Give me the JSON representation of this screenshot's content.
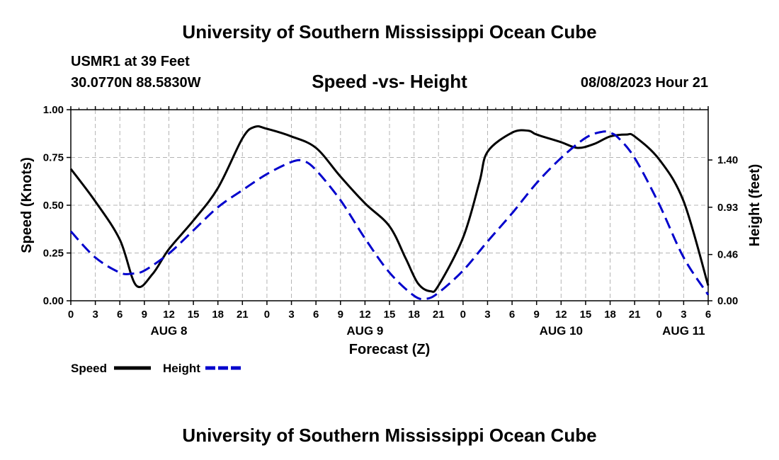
{
  "header": {
    "title": "University of Southern Mississippi Ocean Cube",
    "station": "USMR1 at 39 Feet",
    "coords": "30.0770N  88.5830W",
    "subtitle": "Speed -vs- Height",
    "datetime": "08/08/2023 Hour 21"
  },
  "footer": {
    "title": "University of Southern Mississippi Ocean Cube"
  },
  "chart_data": {
    "type": "line",
    "title": "Speed -vs- Height",
    "xlabel": "Forecast (Z)",
    "ylabel": "Speed (Knots)",
    "y2label": "Height (feet)",
    "x_hours_range": [
      0,
      78
    ],
    "ylim": [
      0,
      1.0
    ],
    "y2lim": [
      -0.0,
      1.9
    ],
    "y_ticks": [
      "0.00",
      "0.25",
      "0.50",
      "0.75",
      "1.00"
    ],
    "y_tick_values": [
      0,
      0.25,
      0.5,
      0.75,
      1.0
    ],
    "y2_ticks": [
      "0.00",
      "0.46",
      "0.93",
      "1.40"
    ],
    "y2_tick_values": [
      0.0,
      0.46,
      0.93,
      1.4
    ],
    "x_tick_labels": [
      "0",
      "3",
      "6",
      "9",
      "12",
      "15",
      "18",
      "21",
      "0",
      "3",
      "6",
      "9",
      "12",
      "15",
      "18",
      "21",
      "0",
      "3",
      "6",
      "9",
      "12",
      "15",
      "18",
      "21",
      "0",
      "3",
      "6"
    ],
    "day_labels": [
      {
        "label": "AUG 8",
        "x_hour": 12
      },
      {
        "label": "AUG 9",
        "x_hour": 36
      },
      {
        "label": "AUG 10",
        "x_hour": 60
      },
      {
        "label": "AUG 11",
        "x_hour": 75
      }
    ],
    "grid": true,
    "series": [
      {
        "name": "Speed",
        "axis": "left",
        "color": "#000000",
        "dash": "solid",
        "points": [
          [
            0,
            0.69
          ],
          [
            3,
            0.52
          ],
          [
            6,
            0.32
          ],
          [
            8,
            0.08
          ],
          [
            10,
            0.14
          ],
          [
            12,
            0.27
          ],
          [
            15,
            0.42
          ],
          [
            18,
            0.59
          ],
          [
            21,
            0.85
          ],
          [
            22.5,
            0.91
          ],
          [
            24,
            0.9
          ],
          [
            27,
            0.86
          ],
          [
            30,
            0.8
          ],
          [
            33,
            0.65
          ],
          [
            36,
            0.51
          ],
          [
            39,
            0.39
          ],
          [
            41,
            0.22
          ],
          [
            42.5,
            0.09
          ],
          [
            44,
            0.05
          ],
          [
            45,
            0.08
          ],
          [
            48,
            0.33
          ],
          [
            50,
            0.62
          ],
          [
            51,
            0.78
          ],
          [
            54,
            0.88
          ],
          [
            56,
            0.89
          ],
          [
            57,
            0.87
          ],
          [
            60,
            0.83
          ],
          [
            62,
            0.8
          ],
          [
            64,
            0.82
          ],
          [
            66,
            0.86
          ],
          [
            68,
            0.87
          ],
          [
            69,
            0.86
          ],
          [
            72,
            0.74
          ],
          [
            75,
            0.52
          ],
          [
            78,
            0.08
          ]
        ]
      },
      {
        "name": "Height",
        "axis": "right",
        "color": "#0000cc",
        "dash": "dashed",
        "points": [
          [
            0,
            0.69
          ],
          [
            3,
            0.43
          ],
          [
            6,
            0.28
          ],
          [
            7.5,
            0.27
          ],
          [
            9,
            0.3
          ],
          [
            12,
            0.47
          ],
          [
            15,
            0.7
          ],
          [
            18,
            0.93
          ],
          [
            21,
            1.1
          ],
          [
            24,
            1.26
          ],
          [
            27,
            1.38
          ],
          [
            28.5,
            1.39
          ],
          [
            30,
            1.3
          ],
          [
            33,
            1.0
          ],
          [
            36,
            0.62
          ],
          [
            39,
            0.28
          ],
          [
            42,
            0.05
          ],
          [
            43.5,
            0.02
          ],
          [
            45,
            0.08
          ],
          [
            48,
            0.3
          ],
          [
            51,
            0.59
          ],
          [
            54,
            0.87
          ],
          [
            57,
            1.17
          ],
          [
            60,
            1.42
          ],
          [
            63,
            1.62
          ],
          [
            65,
            1.68
          ],
          [
            66,
            1.67
          ],
          [
            67,
            1.62
          ],
          [
            69,
            1.42
          ],
          [
            72,
            0.96
          ],
          [
            75,
            0.43
          ],
          [
            78,
            0.06
          ]
        ]
      }
    ],
    "legend": [
      {
        "label": "Speed",
        "color": "#000000",
        "dash": "solid"
      },
      {
        "label": "Height",
        "color": "#0000cc",
        "dash": "dashed"
      }
    ]
  }
}
